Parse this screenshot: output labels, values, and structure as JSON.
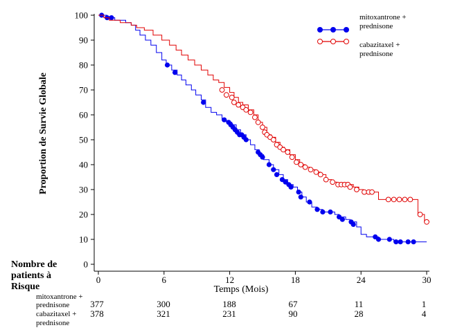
{
  "chart_data": {
    "type": "line",
    "subtype": "kaplan-meier",
    "xlabel": "Temps (Mois)",
    "ylabel": "Proportion de Survie Globale",
    "xlim": [
      0,
      30
    ],
    "ylim": [
      0,
      100
    ],
    "xticks": [
      0,
      6,
      12,
      18,
      24,
      30
    ],
    "yticks": [
      0,
      10,
      20,
      30,
      40,
      50,
      60,
      70,
      80,
      90,
      100
    ],
    "grid": false,
    "legend_position": "top-right",
    "series": [
      {
        "name": "mitoxantrone + prednisone",
        "legend_lines": [
          "mitoxantrone +",
          "prednisone"
        ],
        "color": "#0000ee",
        "marker": "filled-circle",
        "steps": [
          [
            0,
            100
          ],
          [
            0.3,
            100
          ],
          [
            0.8,
            99
          ],
          [
            1.5,
            98
          ],
          [
            2.5,
            97
          ],
          [
            3.0,
            96
          ],
          [
            3.4,
            94
          ],
          [
            3.8,
            92
          ],
          [
            4.3,
            90
          ],
          [
            4.8,
            88
          ],
          [
            5.3,
            85
          ],
          [
            5.8,
            82
          ],
          [
            6.2,
            80
          ],
          [
            6.7,
            78
          ],
          [
            7.2,
            76
          ],
          [
            7.6,
            74
          ],
          [
            8.0,
            72
          ],
          [
            8.5,
            70
          ],
          [
            8.9,
            68
          ],
          [
            9.4,
            66
          ],
          [
            9.8,
            63
          ],
          [
            10.3,
            61
          ],
          [
            10.8,
            60
          ],
          [
            11.3,
            58
          ],
          [
            11.7,
            57
          ],
          [
            12.2,
            56
          ],
          [
            12.6,
            54
          ],
          [
            13.0,
            52
          ],
          [
            13.5,
            50
          ],
          [
            13.9,
            48
          ],
          [
            14.3,
            46
          ],
          [
            14.7,
            44
          ],
          [
            15.1,
            42
          ],
          [
            15.6,
            40
          ],
          [
            16.0,
            38
          ],
          [
            16.5,
            36
          ],
          [
            16.9,
            34
          ],
          [
            17.3,
            32
          ],
          [
            17.8,
            31
          ],
          [
            18.2,
            29
          ],
          [
            18.6,
            27
          ],
          [
            19.0,
            25
          ],
          [
            19.5,
            23
          ],
          [
            20.0,
            22
          ],
          [
            20.5,
            21
          ],
          [
            21.0,
            21
          ],
          [
            21.6,
            20
          ],
          [
            22.0,
            19
          ],
          [
            22.6,
            18
          ],
          [
            23.0,
            17
          ],
          [
            23.6,
            15
          ],
          [
            24.0,
            12
          ],
          [
            24.5,
            11
          ],
          [
            25.0,
            11
          ],
          [
            25.6,
            10
          ],
          [
            26.5,
            10
          ],
          [
            27.0,
            9
          ],
          [
            30.0,
            9
          ]
        ],
        "censored": [
          [
            0.3,
            100
          ],
          [
            0.8,
            99
          ],
          [
            1.2,
            99
          ],
          [
            6.3,
            80
          ],
          [
            7.0,
            77
          ],
          [
            9.6,
            65
          ],
          [
            11.5,
            58
          ],
          [
            11.9,
            57
          ],
          [
            12.1,
            56
          ],
          [
            12.3,
            55
          ],
          [
            12.5,
            54
          ],
          [
            12.7,
            53
          ],
          [
            12.9,
            52
          ],
          [
            13.1,
            52
          ],
          [
            13.3,
            51
          ],
          [
            13.5,
            50
          ],
          [
            14.6,
            45
          ],
          [
            14.8,
            44
          ],
          [
            15.0,
            43
          ],
          [
            15.6,
            40
          ],
          [
            16.0,
            38
          ],
          [
            16.3,
            36
          ],
          [
            16.8,
            34
          ],
          [
            17.1,
            33
          ],
          [
            17.4,
            32
          ],
          [
            17.6,
            31
          ],
          [
            18.3,
            29
          ],
          [
            18.5,
            27
          ],
          [
            19.3,
            25
          ],
          [
            20.0,
            22
          ],
          [
            20.5,
            21
          ],
          [
            21.2,
            21
          ],
          [
            22.0,
            19
          ],
          [
            22.3,
            18
          ],
          [
            23.1,
            17
          ],
          [
            23.3,
            16
          ],
          [
            25.3,
            11
          ],
          [
            25.6,
            10
          ],
          [
            26.6,
            10
          ],
          [
            27.2,
            9
          ],
          [
            27.6,
            9
          ],
          [
            28.3,
            9
          ],
          [
            28.8,
            9
          ]
        ]
      },
      {
        "name": "cabazitaxel + prednisone",
        "legend_lines": [
          "cabazitaxel +",
          "prednisone"
        ],
        "color": "#e00000",
        "marker": "open-circle",
        "steps": [
          [
            0,
            100
          ],
          [
            0.5,
            99
          ],
          [
            1.0,
            98
          ],
          [
            2.0,
            97
          ],
          [
            3.0,
            96
          ],
          [
            3.5,
            95
          ],
          [
            4.2,
            94
          ],
          [
            5.0,
            92
          ],
          [
            5.8,
            90
          ],
          [
            6.5,
            88
          ],
          [
            7.1,
            86
          ],
          [
            7.6,
            84
          ],
          [
            8.2,
            82
          ],
          [
            8.8,
            80
          ],
          [
            9.4,
            78
          ],
          [
            10.0,
            76
          ],
          [
            10.5,
            74
          ],
          [
            11.0,
            73
          ],
          [
            11.5,
            71
          ],
          [
            12.0,
            69
          ],
          [
            12.4,
            67
          ],
          [
            12.8,
            65
          ],
          [
            13.2,
            64
          ],
          [
            13.7,
            62
          ],
          [
            14.2,
            60
          ],
          [
            14.6,
            57
          ],
          [
            15.0,
            55
          ],
          [
            15.4,
            52
          ],
          [
            15.8,
            51
          ],
          [
            16.2,
            49
          ],
          [
            16.6,
            47
          ],
          [
            17.0,
            46
          ],
          [
            17.5,
            44
          ],
          [
            18.0,
            42
          ],
          [
            18.4,
            40
          ],
          [
            18.9,
            39
          ],
          [
            19.3,
            38
          ],
          [
            19.8,
            37
          ],
          [
            20.3,
            36
          ],
          [
            20.8,
            34
          ],
          [
            21.3,
            33
          ],
          [
            21.8,
            32
          ],
          [
            23.0,
            32
          ],
          [
            23.3,
            31
          ],
          [
            23.8,
            30
          ],
          [
            24.2,
            29
          ],
          [
            25.4,
            29
          ],
          [
            25.6,
            26
          ],
          [
            29.0,
            26
          ],
          [
            29.2,
            20
          ],
          [
            29.8,
            17
          ],
          [
            30.0,
            17
          ]
        ],
        "censored": [
          [
            11.3,
            70
          ],
          [
            11.7,
            68
          ],
          [
            12.2,
            67
          ],
          [
            12.4,
            65
          ],
          [
            12.8,
            64
          ],
          [
            13.2,
            63
          ],
          [
            13.5,
            62
          ],
          [
            13.9,
            61
          ],
          [
            14.3,
            59
          ],
          [
            14.6,
            57
          ],
          [
            15.0,
            55
          ],
          [
            15.2,
            53
          ],
          [
            15.4,
            52
          ],
          [
            15.7,
            51
          ],
          [
            16.0,
            50
          ],
          [
            16.3,
            48
          ],
          [
            16.6,
            47
          ],
          [
            16.9,
            46
          ],
          [
            17.3,
            45
          ],
          [
            17.7,
            43
          ],
          [
            18.1,
            41
          ],
          [
            18.5,
            40
          ],
          [
            18.9,
            39
          ],
          [
            19.4,
            38
          ],
          [
            19.9,
            37
          ],
          [
            20.3,
            36
          ],
          [
            20.8,
            34
          ],
          [
            21.4,
            33
          ],
          [
            21.9,
            32
          ],
          [
            22.2,
            32
          ],
          [
            22.5,
            32
          ],
          [
            22.8,
            32
          ],
          [
            23.0,
            31
          ],
          [
            23.6,
            30
          ],
          [
            24.3,
            29
          ],
          [
            24.7,
            29
          ],
          [
            25.0,
            29
          ],
          [
            26.5,
            26
          ],
          [
            27.0,
            26
          ],
          [
            27.5,
            26
          ],
          [
            28.0,
            26
          ],
          [
            28.5,
            26
          ],
          [
            29.4,
            20
          ],
          [
            30.0,
            17
          ]
        ]
      }
    ]
  },
  "risk_table": {
    "title_lines": [
      "Nombre de",
      "patients à",
      "Risque"
    ],
    "rows": [
      {
        "label_lines": [
          "mitoxantrone +",
          "prednisone"
        ],
        "values": [
          "377",
          "300",
          "188",
          "67",
          "11",
          "1"
        ]
      },
      {
        "label_lines": [
          "cabazitaxel +",
          "prednisone"
        ],
        "values": [
          "378",
          "321",
          "231",
          "90",
          "28",
          "4"
        ]
      }
    ]
  }
}
